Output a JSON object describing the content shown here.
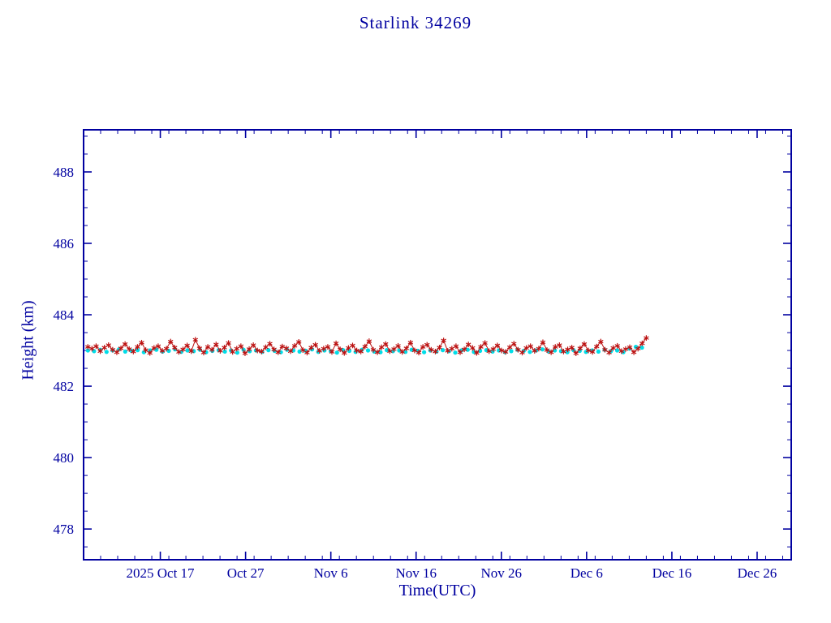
{
  "page": {
    "title": "Starlink 34269"
  },
  "chart_data": {
    "type": "scatter",
    "title": "Starlink 34269",
    "xlabel": "Time(UTC)",
    "ylabel": "Height (km)",
    "axis_color": "#0000a0",
    "background": "#ffffff",
    "grid": false,
    "legend": "none",
    "xlim_days": [
      1,
      84
    ],
    "ylim": [
      477.14,
      489.18
    ],
    "y_ticks": [
      478,
      480,
      482,
      484,
      486,
      488
    ],
    "y_minor_step": 0.5,
    "x_minor_step": 2,
    "x_ticks": [
      {
        "day": 10,
        "label": "2025 Oct 17"
      },
      {
        "day": 20,
        "label": "Oct 27"
      },
      {
        "day": 30,
        "label": "Nov 6"
      },
      {
        "day": 40,
        "label": "Nov 16"
      },
      {
        "day": 50,
        "label": "Nov 26"
      },
      {
        "day": 60,
        "label": "Dec 6"
      },
      {
        "day": 70,
        "label": "Dec 16"
      },
      {
        "day": 80,
        "label": "Dec 26"
      }
    ],
    "series": [
      {
        "name": "secondary-track-cyan",
        "color": "#00dde8",
        "marker": "dot",
        "marker_size": 2.6,
        "line": false,
        "x_start_day": 1.5,
        "x_end_day": 66.5,
        "values": [
          483.0,
          482.98,
          483.02,
          482.96,
          483.0,
          483.03,
          482.97,
          482.99,
          483.01,
          482.95,
          483.0,
          483.02,
          482.97,
          482.99,
          483.03,
          482.96,
          483.0,
          482.98,
          483.02,
          482.95,
          482.99,
          483.01,
          482.97,
          483.0,
          482.94,
          483.02,
          482.98,
          483.0,
          482.96,
          483.01,
          482.99,
          482.95,
          483.02,
          483.0,
          482.97,
          482.99,
          483.03,
          482.96,
          483.0,
          482.98,
          482.94,
          483.01,
          482.99,
          482.96,
          483.02,
          483.0,
          482.97,
          482.95,
          483.01,
          482.98,
          483.0,
          482.96,
          483.02,
          482.99,
          482.95,
          483.0,
          482.97,
          483.01,
          482.98,
          482.94,
          483.0,
          483.02,
          482.96,
          482.99,
          483.01,
          482.97,
          483.0,
          482.95,
          482.98,
          483.02,
          482.99,
          482.96,
          483.0,
          483.03,
          482.97,
          483.0,
          482.98,
          482.95,
          483.01,
          482.99,
          482.96,
          483.0,
          482.97,
          483.02,
          482.98,
          483.0,
          482.95,
          483.05,
          483.1,
          483.08
        ]
      },
      {
        "name": "observed-height-red",
        "color": "#bb1111",
        "marker": "asterisk",
        "marker_size": 3.4,
        "line": true,
        "x_start_day": 1.5,
        "x_end_day": 67.0,
        "values": [
          483.1,
          483.05,
          483.12,
          482.98,
          483.08,
          483.15,
          483.02,
          482.95,
          483.06,
          483.18,
          483.04,
          482.97,
          483.1,
          483.22,
          483.01,
          482.93,
          483.07,
          483.12,
          482.99,
          483.05,
          483.25,
          483.08,
          482.96,
          483.03,
          483.14,
          482.98,
          483.3,
          483.06,
          482.94,
          483.1,
          483.02,
          483.17,
          482.99,
          483.08,
          483.21,
          482.96,
          483.05,
          483.12,
          482.92,
          483.04,
          483.15,
          483.0,
          482.97,
          483.09,
          483.19,
          483.03,
          482.95,
          483.11,
          483.06,
          482.98,
          483.13,
          483.24,
          483.01,
          482.94,
          483.08,
          483.16,
          482.99,
          483.05,
          483.1,
          482.96,
          483.2,
          483.03,
          482.93,
          483.07,
          483.14,
          483.0,
          482.97,
          483.11,
          483.26,
          483.02,
          482.95,
          483.09,
          483.18,
          482.98,
          483.04,
          483.13,
          482.96,
          483.06,
          483.22,
          483.0,
          482.94,
          483.1,
          483.16,
          483.02,
          482.97,
          483.08,
          483.28,
          482.99,
          483.05,
          483.12,
          482.95,
          483.03,
          483.17,
          483.07,
          482.93,
          483.1,
          483.21,
          482.98,
          483.04,
          483.14,
          483.0,
          482.96,
          483.09,
          483.19,
          483.02,
          482.94,
          483.07,
          483.12,
          482.99,
          483.05,
          483.23,
          483.01,
          482.95,
          483.1,
          483.15,
          482.97,
          483.03,
          483.08,
          482.92,
          483.06,
          483.18,
          483.0,
          482.96,
          483.11,
          483.25,
          483.02,
          482.94,
          483.07,
          483.13,
          482.98,
          483.04,
          483.09,
          482.95,
          483.05,
          483.2,
          483.35
        ]
      }
    ]
  }
}
